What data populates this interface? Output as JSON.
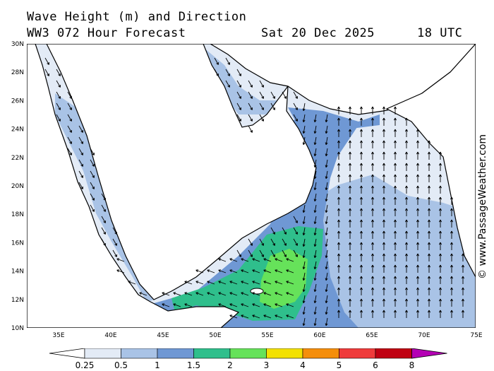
{
  "header": {
    "title": "Wave Height (m) and Direction",
    "subtitle": "WW3 072 Hour Forecast",
    "date": "Sat 20 Dec 2025",
    "time": "18 UTC"
  },
  "watermark": "© www.PassageWeather.com",
  "lat_labels": [
    "30N",
    "28N",
    "26N",
    "24N",
    "22N",
    "20N",
    "18N",
    "16N",
    "14N",
    "12N",
    "10N"
  ],
  "lon_labels": [
    "35E",
    "40E",
    "45E",
    "50E",
    "55E",
    "60E",
    "65E",
    "70E",
    "75E"
  ],
  "colorbar": {
    "labels": [
      "0.25",
      "0.5",
      "1",
      "1.5",
      "2",
      "3",
      "4",
      "5",
      "6",
      "8"
    ],
    "colors": [
      "#e3ebf6",
      "#a9c3e6",
      "#6f98d4",
      "#2fbf8c",
      "#66e25a",
      "#f3e100",
      "#f58e0a",
      "#ef3b3b",
      "#c00012",
      "#b400b4"
    ]
  },
  "colors": {
    "land": "#ffffff",
    "sea_low": "#e3ebf6",
    "coast": "#000000",
    "arrow": "#000000"
  }
}
